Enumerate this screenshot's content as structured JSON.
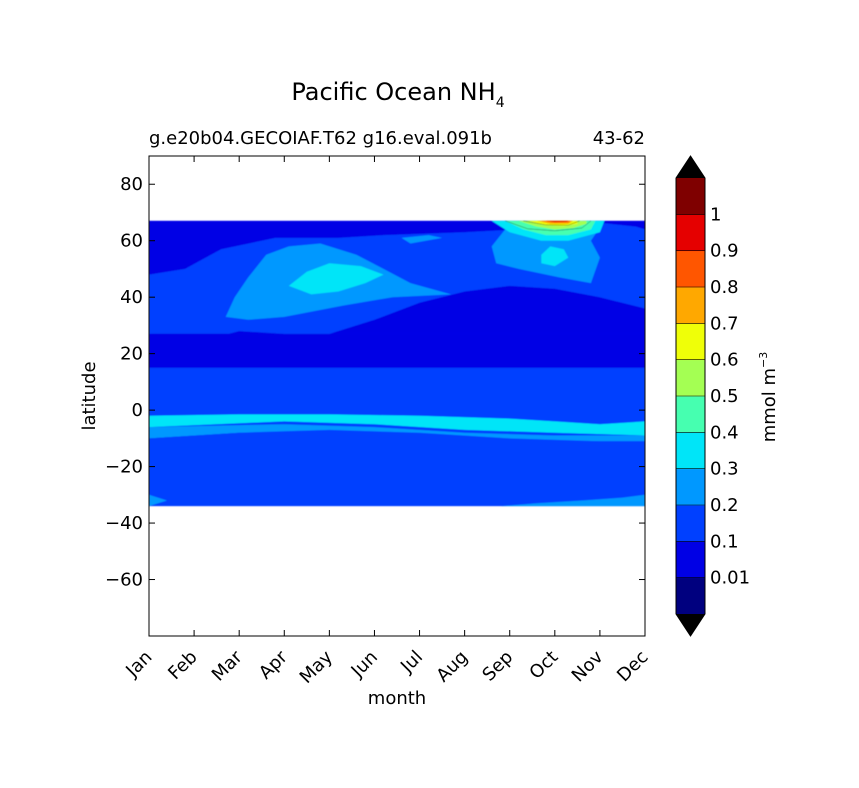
{
  "chart_data": {
    "type": "contour",
    "title": "Pacific Ocean NH",
    "title_subscript": "4",
    "subtitle_left": "g.e20b04.GECOIAF.T62 g16.eval.091b",
    "subtitle_right": "43-62",
    "xlabel": "month",
    "ylabel": "latitude",
    "x_categories": [
      "Jan",
      "Feb",
      "Mar",
      "Apr",
      "May",
      "Jun",
      "Jul",
      "Aug",
      "Sep",
      "Oct",
      "Nov",
      "Dec"
    ],
    "yticks": [
      80,
      60,
      40,
      20,
      0,
      -20,
      -40,
      -60
    ],
    "ytick_labels": [
      "80",
      "60",
      "40",
      "20",
      "0",
      "−20",
      "−40",
      "−60"
    ],
    "ylim": [
      -80,
      90
    ],
    "data_extent_lat": [
      -34,
      67
    ],
    "grid": false,
    "colorbar": {
      "label": "mmol m",
      "label_superscript": "−3",
      "levels": [
        0,
        0.01,
        0.1,
        0.2,
        0.3,
        0.4,
        0.5,
        0.6,
        0.7,
        0.8,
        0.9,
        1,
        1.1
      ],
      "tick_labels": [
        "0.01",
        "0.1",
        "0.2",
        "0.3",
        "0.4",
        "0.5",
        "0.6",
        "0.7",
        "0.8",
        "0.9",
        "1"
      ],
      "colors": [
        "#00007f",
        "#0000e5",
        "#0040ff",
        "#0098ff",
        "#00e5f8",
        "#46ffb0",
        "#a4ff53",
        "#efff08",
        "#ffa800",
        "#ff5600",
        "#e50000",
        "#7f0000"
      ],
      "extend_colors": [
        "#000000",
        "#000000"
      ]
    },
    "regions": [
      {
        "feature": "low band",
        "lat_range": [
          15,
          27
        ],
        "months": "Jan-Dec",
        "value_range": [
          0.01,
          0.1
        ]
      },
      {
        "feature": "low region",
        "lat_range": [
          27,
          44
        ],
        "months": "Jun-Dec",
        "value_range": [
          0.01,
          0.1
        ]
      },
      {
        "feature": "equatorial band",
        "lat_range": [
          -5,
          -2
        ],
        "months": "Jan-Dec",
        "value_range": [
          0.3,
          0.4
        ]
      },
      {
        "feature": "mid-latitude patch",
        "lat_range": [
          41,
          51
        ],
        "months": "Apr-May",
        "value_range": [
          0.3,
          0.4
        ]
      },
      {
        "feature": "northern peak",
        "lat_range": [
          60,
          67
        ],
        "months": "Sep-Oct",
        "value_range": [
          0.9,
          1.0
        ]
      }
    ]
  }
}
